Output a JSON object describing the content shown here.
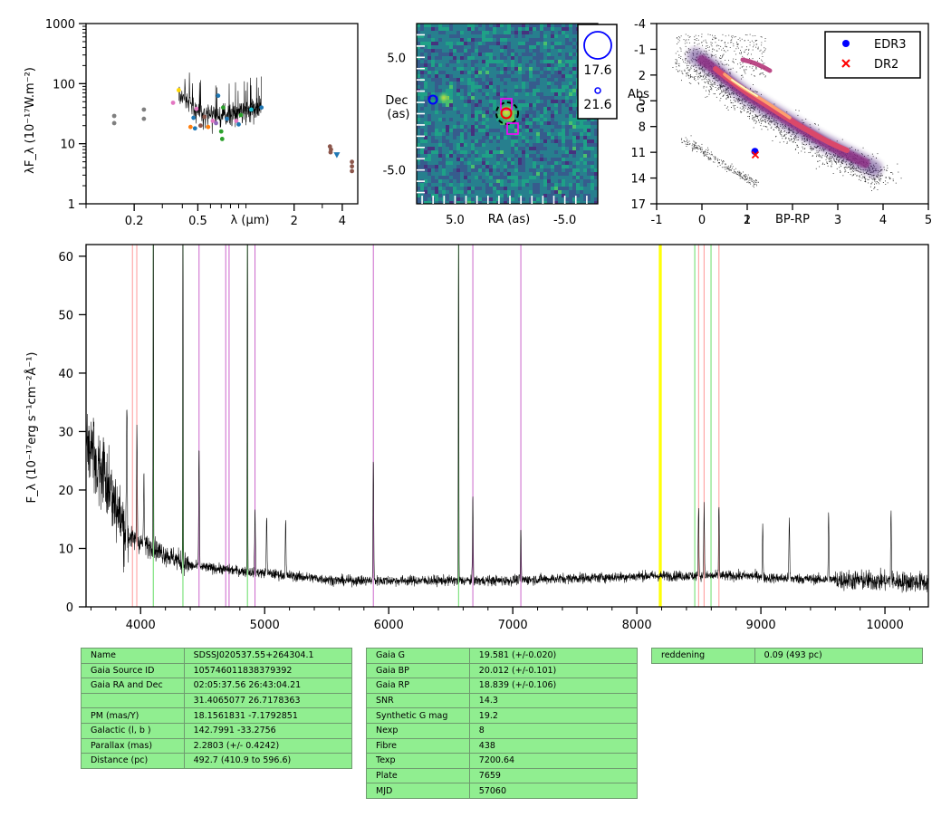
{
  "colors": {
    "accent_green": "#90ee90",
    "sed_spectrum": "#000000",
    "image_marker_blue": "#0000ff",
    "image_marker_magenta": "#ff00ff",
    "image_marker_red": "#ff0000",
    "cmd_edr3": "#0000ff",
    "cmd_dr2": "#ff0000",
    "line_balmer": "#2ca02c",
    "line_calcium": "#ff9999",
    "line_helium": "#cc66cc",
    "line_telluric": "#ffff00",
    "line_paschen": "#66dd66"
  },
  "chart_data": [
    {
      "type": "scatter",
      "name": "sed",
      "xscale": "log",
      "yscale": "log",
      "xlim": [
        0.1,
        5.0
      ],
      "ylim": [
        1,
        1000
      ],
      "ylabel": "λF_λ (10⁻¹⁷W.m⁻²)",
      "xlabel": "λ (μm)",
      "xticks": [
        {
          "v": 0.2,
          "l": "0.2"
        },
        {
          "v": 0.5,
          "l": "0.5"
        },
        {
          "v": 2,
          "l": "2"
        },
        {
          "v": 4,
          "l": "4"
        }
      ],
      "yticks": [
        {
          "v": 1,
          "l": "1"
        },
        {
          "v": 10,
          "l": "10"
        },
        {
          "v": 100,
          "l": "100"
        },
        {
          "v": 1000,
          "l": "1000"
        }
      ],
      "points": [
        {
          "x": 0.15,
          "y": 29,
          "c": "#7f7f7f"
        },
        {
          "x": 0.15,
          "y": 22,
          "c": "#7f7f7f"
        },
        {
          "x": 0.23,
          "y": 37,
          "c": "#7f7f7f"
        },
        {
          "x": 0.23,
          "y": 26,
          "c": "#7f7f7f"
        },
        {
          "x": 0.35,
          "y": 48,
          "c": "#e377c2"
        },
        {
          "x": 0.38,
          "y": 78,
          "c": "#ffd700"
        },
        {
          "x": 0.45,
          "y": 19,
          "c": "#ff7f0e"
        },
        {
          "x": 0.47,
          "y": 27,
          "c": "#1f77b4"
        },
        {
          "x": 0.48,
          "y": 18,
          "c": "#1f77b4"
        },
        {
          "x": 0.49,
          "y": 38,
          "c": "#e377c2"
        },
        {
          "x": 0.52,
          "y": 20,
          "c": "#8c564b"
        },
        {
          "x": 0.55,
          "y": 28,
          "c": "#8c564b"
        },
        {
          "x": 0.58,
          "y": 19,
          "c": "#ff7f0e"
        },
        {
          "x": 0.62,
          "y": 24,
          "c": "#e377c2"
        },
        {
          "x": 0.65,
          "y": 22,
          "c": "#9467bd"
        },
        {
          "x": 0.67,
          "y": 63,
          "c": "#1f77b4"
        },
        {
          "x": 0.7,
          "y": 16,
          "c": "#2ca02c"
        },
        {
          "x": 0.72,
          "y": 40,
          "c": "#2ca02c"
        },
        {
          "x": 0.71,
          "y": 12,
          "c": "#2ca02c"
        },
        {
          "x": 0.76,
          "y": 26,
          "c": "#1f77b4"
        },
        {
          "x": 0.87,
          "y": 24,
          "c": "#e377c2"
        },
        {
          "x": 0.9,
          "y": 21,
          "c": "#1f77b4"
        },
        {
          "x": 0.93,
          "y": 30,
          "c": "#2ca02c"
        },
        {
          "x": 1.08,
          "y": 37,
          "c": "#17becf"
        },
        {
          "x": 1.25,
          "y": 40,
          "c": "#1f77b4"
        },
        {
          "x": 3.35,
          "y": 9,
          "c": "#8c564b"
        },
        {
          "x": 3.4,
          "y": 8,
          "c": "#8c564b"
        },
        {
          "x": 3.38,
          "y": 7.2,
          "c": "#8c564b"
        },
        {
          "x": 4.6,
          "y": 5,
          "c": "#8c564b"
        },
        {
          "x": 4.6,
          "y": 4.2,
          "c": "#8c564b"
        },
        {
          "x": 4.6,
          "y": 3.5,
          "c": "#8c564b"
        }
      ],
      "triangle": {
        "x": 3.7,
        "y": 6.5,
        "c": "#1f77b4"
      }
    },
    {
      "type": "heatmap",
      "name": "sky-image",
      "xlabel": "RA (as)",
      "ylabel": "Dec (as)",
      "xlim": [
        8.5,
        -8.0
      ],
      "ylim": [
        -8.0,
        8.0
      ],
      "xticks": [
        {
          "v": 5.0,
          "l": "5.0"
        },
        {
          "v": -5.0,
          "l": "-5.0"
        }
      ],
      "yticks": [
        {
          "v": 5.0,
          "l": "5.0"
        },
        {
          "v": -5.0,
          "l": "-5.0"
        }
      ],
      "legend": [
        {
          "label": "17.6"
        },
        {
          "label": "21.6"
        }
      ],
      "sources": [
        {
          "x": 0.7,
          "y": 0.2,
          "mag": "bright"
        },
        {
          "x": 6.5,
          "y": 1.3,
          "mag": "faint"
        }
      ]
    },
    {
      "type": "scatter",
      "name": "hr-diagram",
      "xlabel": "BP-RP",
      "ylabel": "Abs G",
      "xlim": [
        -1,
        5
      ],
      "ylim": [
        17,
        -4
      ],
      "xticks": [
        {
          "v": -1,
          "l": "-1"
        },
        {
          "v": 0,
          "l": "0"
        },
        {
          "v": 1,
          "l": "1"
        },
        {
          "v": 2,
          "l": "2"
        },
        {
          "v": 3,
          "l": "3"
        },
        {
          "v": 4,
          "l": "4"
        },
        {
          "v": 5,
          "l": "5"
        }
      ],
      "yticks": [
        {
          "v": -4,
          "l": "-4"
        },
        {
          "v": -1,
          "l": "-1"
        },
        {
          "v": 2,
          "l": "2"
        },
        {
          "v": 5,
          "l": "5"
        },
        {
          "v": 8,
          "l": "8"
        },
        {
          "v": 11,
          "l": "11"
        },
        {
          "v": 14,
          "l": "14"
        },
        {
          "v": 17,
          "l": "17"
        }
      ],
      "legend": [
        {
          "label": "EDR3",
          "marker": "circle",
          "color": "#0000ff"
        },
        {
          "label": "DR2",
          "marker": "x",
          "color": "#ff0000"
        }
      ],
      "legend_position": "top-right",
      "target_edr3": {
        "x": 1.17,
        "y": 10.9
      },
      "target_dr2": {
        "x": 1.18,
        "y": 11.3
      }
    },
    {
      "type": "line",
      "name": "spectrum",
      "ylabel": "F_λ (10⁻¹⁷erg s⁻¹cm⁻²Å⁻¹)",
      "xlim": [
        3560,
        10350
      ],
      "ylim": [
        0,
        62
      ],
      "xticks": [
        {
          "v": 4000,
          "l": "4000"
        },
        {
          "v": 5000,
          "l": "5000"
        },
        {
          "v": 6000,
          "l": "6000"
        },
        {
          "v": 7000,
          "l": "7000"
        },
        {
          "v": 8000,
          "l": "8000"
        },
        {
          "v": 9000,
          "l": "9000"
        },
        {
          "v": 10000,
          "l": "10000"
        }
      ],
      "yticks": [
        {
          "v": 0,
          "l": "0"
        },
        {
          "v": 10,
          "l": "10"
        },
        {
          "v": 20,
          "l": "20"
        },
        {
          "v": 30,
          "l": "30"
        },
        {
          "v": 40,
          "l": "40"
        },
        {
          "v": 50,
          "l": "50"
        },
        {
          "v": 60,
          "l": "60"
        }
      ],
      "vlines": [
        {
          "x": 3934,
          "c": "#ff9999"
        },
        {
          "x": 3969,
          "c": "#ff9999"
        },
        {
          "x": 4102,
          "c": "#66dd66"
        },
        {
          "x": 4341,
          "c": "#66dd66"
        },
        {
          "x": 4861,
          "c": "#66dd66"
        },
        {
          "x": 6563,
          "c": "#66dd66"
        },
        {
          "x": 4471,
          "c": "#cc66cc"
        },
        {
          "x": 4686,
          "c": "#cc66cc"
        },
        {
          "x": 4713,
          "c": "#cc66cc"
        },
        {
          "x": 4922,
          "c": "#cc66cc"
        },
        {
          "x": 5876,
          "c": "#cc66cc"
        },
        {
          "x": 6678,
          "c": "#cc66cc"
        },
        {
          "x": 7065,
          "c": "#cc66cc"
        },
        {
          "x": 8183,
          "c": "#ffff00"
        },
        {
          "x": 8195,
          "c": "#ffff00"
        },
        {
          "x": 8498,
          "c": "#ff9999"
        },
        {
          "x": 8542,
          "c": "#ff9999"
        },
        {
          "x": 8662,
          "c": "#ff9999"
        },
        {
          "x": 8467,
          "c": "#66dd66"
        },
        {
          "x": 8598,
          "c": "#66dd66"
        }
      ],
      "emission": [
        {
          "x": 4102,
          "h": 62
        },
        {
          "x": 4341,
          "h": 62
        },
        {
          "x": 4861,
          "h": 62
        },
        {
          "x": 6563,
          "h": 62
        },
        {
          "x": 4471,
          "h": 21
        },
        {
          "x": 5876,
          "h": 21
        },
        {
          "x": 6678,
          "h": 14
        },
        {
          "x": 4922,
          "h": 11
        },
        {
          "x": 5016,
          "h": 10
        },
        {
          "x": 5169,
          "h": 9
        },
        {
          "x": 7065,
          "h": 8.5
        },
        {
          "x": 3889,
          "h": 24
        },
        {
          "x": 3970,
          "h": 20
        },
        {
          "x": 4026,
          "h": 11
        },
        {
          "x": 8498,
          "h": 12
        },
        {
          "x": 8542,
          "h": 12
        },
        {
          "x": 8662,
          "h": 12
        },
        {
          "x": 9015,
          "h": 9
        },
        {
          "x": 9229,
          "h": 10
        },
        {
          "x": 9546,
          "h": 11
        },
        {
          "x": 10049,
          "h": 12
        }
      ]
    }
  ],
  "tables": {
    "astrometry": [
      [
        "Name",
        "SDSSJ020537.55+264304.1"
      ],
      [
        "Gaia Source ID",
        "105746011838379392"
      ],
      [
        "Gaia RA and Dec",
        "02:05:37.56    26:43:04.21"
      ],
      [
        "",
        "31.4065077    26.7178363"
      ],
      [
        "PM (mas/Y)",
        "18.1561831    -7.1792851"
      ],
      [
        "Galactic (l, b )",
        "142.7991    -33.2756"
      ],
      [
        "Parallax (mas)",
        "2.2803 (+/- 0.4242)"
      ],
      [
        "Distance (pc)",
        "492.7 (410.9 to 596.6)"
      ]
    ],
    "photometry": [
      [
        "Gaia G",
        "19.581 (+/-0.020)"
      ],
      [
        "Gaia BP",
        "20.012 (+/-0.101)"
      ],
      [
        "Gaia RP",
        "18.839 (+/-0.106)"
      ],
      [
        "SNR",
        "14.3"
      ],
      [
        "Synthetic G mag",
        "19.2"
      ],
      [
        "Nexp",
        "8"
      ],
      [
        "Fibre",
        "438"
      ],
      [
        "Texp",
        "7200.64"
      ],
      [
        "Plate",
        "7659"
      ],
      [
        "MJD",
        "57060"
      ]
    ],
    "extinction": [
      [
        "reddening",
        "0.09 (493 pc)"
      ]
    ]
  }
}
